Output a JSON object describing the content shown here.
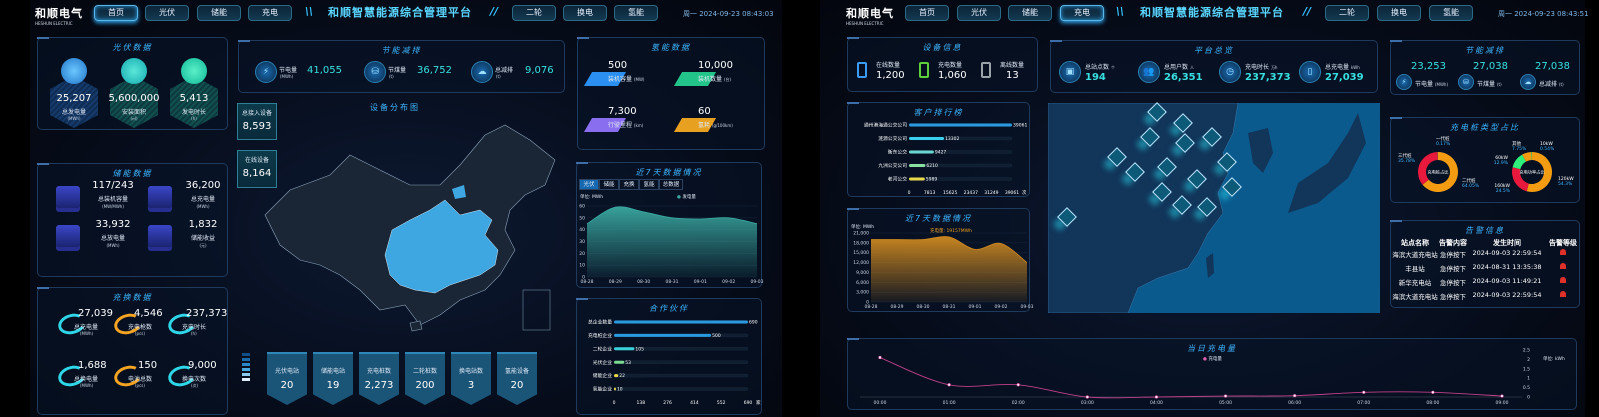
{
  "left": {
    "header": {
      "logo": "和顺电气",
      "logo_sub": "HESHUN ELECTRIC",
      "nav_left": [
        "首页",
        "光伏",
        "储能",
        "充电"
      ],
      "title": "和顺智慧能源综合管理平台",
      "nav_right": [
        "二轮",
        "换电",
        "氢能"
      ],
      "datetime": "周一 2024-09-23 08:43:03",
      "active_nav": "首页"
    },
    "pv": {
      "title": "光伏数据",
      "items": [
        {
          "value": "25,207",
          "label": "总发电量",
          "unit": "(MWh)"
        },
        {
          "value": "5,600,000",
          "label": "安装面积",
          "unit": "(㎡)"
        },
        {
          "value": "5,413",
          "label": "发电时长",
          "unit": "(h)"
        }
      ]
    },
    "storage": {
      "title": "储能数据",
      "items": [
        {
          "value": "117/243",
          "label": "总装机容量",
          "unit": "(MW/MWh)"
        },
        {
          "value": "36,200",
          "label": "总充电量",
          "unit": "(MWh)"
        },
        {
          "value": "33,932",
          "label": "总放电量",
          "unit": "(MWh)"
        },
        {
          "value": "1,832",
          "label": "储能收益",
          "unit": "(元)"
        }
      ]
    },
    "charge_swap": {
      "title": "充换数据",
      "items": [
        {
          "value": "27,039",
          "label": "总充电量",
          "unit": "(MWh)"
        },
        {
          "value": "4,546",
          "label": "充电枪数",
          "unit": "(pcs)"
        },
        {
          "value": "237,373",
          "label": "充电时长",
          "unit": "(h)"
        },
        {
          "value": "1,688",
          "label": "总换电量",
          "unit": "(MWh)"
        },
        {
          "value": "150",
          "label": "电池总数",
          "unit": "(pcs)"
        },
        {
          "value": "9,000",
          "label": "换电次数",
          "unit": "(次)"
        }
      ]
    },
    "saving": {
      "title": "节能减排",
      "items": [
        {
          "label": "节电量",
          "unit": "(MWh)",
          "value": "41,055"
        },
        {
          "label": "节煤量",
          "unit": "(t)",
          "value": "36,752"
        },
        {
          "label": "总减排",
          "unit": "(t)",
          "value": "9,076"
        }
      ]
    },
    "map": {
      "title": "设备分布图",
      "total_label": "总接入设备",
      "total_value": "8,593",
      "online_label": "在线设备",
      "online_value": "8,164",
      "stats": [
        {
          "label": "光伏电站",
          "value": "20"
        },
        {
          "label": "储能电站",
          "value": "19"
        },
        {
          "label": "充电桩数",
          "value": "2,273"
        },
        {
          "label": "二轮桩数",
          "value": "200"
        },
        {
          "label": "换电站数",
          "value": "3"
        },
        {
          "label": "氢能设备",
          "value": "20"
        }
      ],
      "legend_colors": [
        "#0f4e86",
        "#1a6aa8",
        "#2a88c8",
        "#45a8e0",
        "#8ccaf0",
        "#dfeefa"
      ],
      "highlight_color": "#3ea6e0"
    },
    "hydrogen": {
      "title": "氢能数据",
      "items": [
        {
          "value": "500",
          "label": "装机容量",
          "unit": "(MW)",
          "color": "#2a8ff0"
        },
        {
          "value": "10,000",
          "label": "装机数量",
          "unit": "(台)",
          "color": "#23c48a"
        },
        {
          "value": "7,300",
          "label": "行驶里程",
          "unit": "(km)",
          "color": "#8a6ef0"
        },
        {
          "value": "60",
          "label": "氢耗",
          "unit": "(g/100km)",
          "color": "#e8a020"
        }
      ]
    },
    "week": {
      "title": "近7天数据情况",
      "tabs": [
        "光伏",
        "储能",
        "充换",
        "氢能",
        "总数据"
      ],
      "active_tab": "光伏",
      "unit": "单位: MWh",
      "legend": "发电量"
    },
    "partners": {
      "title": "合作伙伴"
    }
  },
  "right": {
    "header": {
      "logo": "和顺电气",
      "logo_sub": "HESHUN ELECTRIC",
      "nav_left": [
        "首页",
        "光伏",
        "储能",
        "充电"
      ],
      "title": "和顺智慧能源综合管理平台",
      "nav_right": [
        "二轮",
        "换电",
        "氢能"
      ],
      "datetime": "周一 2024-09-23 08:43:51",
      "active_nav": "充电"
    },
    "device": {
      "title": "设备信息",
      "items": [
        {
          "label": "在线数量",
          "value": "1,200",
          "color": "#3a9cf0"
        },
        {
          "label": "充电数量",
          "value": "1,060",
          "color": "#5ccf3a"
        },
        {
          "label": "离线数量",
          "value": "13",
          "color": "#9aa2aa"
        }
      ]
    },
    "overview": {
      "title": "平台总览",
      "items": [
        {
          "label": "总站点数",
          "unit": "个",
          "value": "194"
        },
        {
          "label": "总用户数",
          "unit": "人",
          "value": "26,351"
        },
        {
          "label": "充电时长",
          "unit": "万h",
          "value": "237,373"
        },
        {
          "label": "总充电量",
          "unit": "kWh",
          "value": "27,039"
        }
      ]
    },
    "saving": {
      "title": "节能减排",
      "items": [
        {
          "value": "23,253",
          "label": "节电量",
          "unit": "(MWh)"
        },
        {
          "value": "27,038",
          "label": "节煤量",
          "unit": "(t)"
        },
        {
          "value": "27,038",
          "label": "总减排",
          "unit": "(t)"
        }
      ]
    },
    "ranking": {
      "title": "客户排行榜"
    },
    "week": {
      "title": "近7天数据情况",
      "unit": "单位: MWh",
      "tooltip": "充电量: 19157MWh"
    },
    "pile_types": {
      "title": "充电桩类型占比"
    },
    "alarms": {
      "title": "告警信息",
      "headers": [
        "站点名称",
        "告警内容",
        "发生时间",
        "告警等级"
      ],
      "rows": [
        [
          "海滨大道充电站",
          "急停按下",
          "2024-09-03 22:59:54"
        ],
        [
          "丰县站",
          "急停按下",
          "2024-08-31 13:35:38"
        ],
        [
          "新华充电站",
          "急停按下",
          "2024-09-03 11:49:21"
        ],
        [
          "海滨大道充电站",
          "急停按下",
          "2024-09-03 22:59:54"
        ]
      ],
      "level_color": "#e0302a"
    },
    "daily": {
      "title": "当日充电量",
      "legend": "充电量",
      "unit": "单位: kWh"
    }
  },
  "chart_data": [
    {
      "id": "left-week",
      "type": "area",
      "x": [
        "08-28",
        "08-29",
        "08-30",
        "08-31",
        "09-01",
        "09-02",
        "09-03"
      ],
      "series": [
        {
          "name": "发电量",
          "values": [
            45,
            59,
            55,
            50,
            49,
            50,
            45
          ]
        }
      ],
      "ylim": [
        0,
        60
      ],
      "yticks": [
        0,
        10,
        20,
        30,
        40,
        50,
        60
      ],
      "ylabel": "单位: MWh",
      "color": "#3aa8a0",
      "grid": true
    },
    {
      "id": "partners",
      "type": "bar",
      "orientation": "horizontal",
      "categories": [
        "总企业数量",
        "充电桩企业",
        "二轮企业",
        "光伏企业",
        "储能企业",
        "氢能企业"
      ],
      "values": [
        690,
        500,
        105,
        53,
        22,
        10
      ],
      "colors": [
        "#2a9ae0",
        "#2a9ae0",
        "#3ad0d8",
        "#7ad890",
        "#e8d84a",
        "#e8d84a"
      ],
      "xlim": [
        0,
        690
      ],
      "xticks": [
        0,
        138,
        276,
        414,
        552,
        690
      ],
      "xunit": "家"
    },
    {
      "id": "ranking",
      "type": "bar",
      "orientation": "horizontal",
      "categories": [
        "通州港海通公交公司",
        "涟源公交公司",
        "衡东公交",
        "九洲公交公司",
        "老河公交"
      ],
      "values": [
        39061,
        13302,
        9427,
        6210,
        5989
      ],
      "colors": [
        "#2a9ae0",
        "#3ad0f0",
        "#6ad8d0",
        "#8ae0a0",
        "#e8d84a"
      ],
      "xlim": [
        0,
        39061
      ],
      "xticks": [
        0,
        7813,
        15625,
        23437,
        31249,
        39061
      ],
      "xunit": "次"
    },
    {
      "id": "right-week",
      "type": "area",
      "x": [
        "08-28",
        "08-29",
        "08-30",
        "08-31",
        "09-01",
        "09-02",
        "09-03"
      ],
      "series": [
        {
          "name": "充电量",
          "values": [
            19000,
            19000,
            19000,
            19800,
            16000,
            17800,
            12000
          ]
        }
      ],
      "ylim": [
        0,
        21000
      ],
      "yticks": [
        0,
        3000,
        6000,
        9000,
        12000,
        15000,
        18000,
        21000
      ],
      "ylabel": "单位: MWh",
      "color": "#d08a20",
      "grid": true
    },
    {
      "id": "pie-gen",
      "type": "pie",
      "center_label": "充电桩占比",
      "slices": [
        {
          "name": "二代桩",
          "value": 64.05,
          "color": "#f39c12"
        },
        {
          "name": "三代桩",
          "value": 35.78,
          "color": "#e8193c"
        },
        {
          "name": "一代桩",
          "value": 0.17,
          "color": "#2ecc71"
        }
      ]
    },
    {
      "id": "pie-power",
      "type": "pie",
      "center_label": "充电功率占比",
      "slices": [
        {
          "name": "120kW",
          "value": 54.3,
          "color": "#f39c12"
        },
        {
          "name": "160kW",
          "value": 24.5,
          "color": "#e8193c"
        },
        {
          "name": "60kW",
          "value": 12.9,
          "color": "#2ef07a"
        },
        {
          "name": "其他",
          "value": 7.75,
          "color": "#f39c12"
        },
        {
          "name": "10kW",
          "value": 0.54,
          "color": "#2ecc71"
        }
      ]
    },
    {
      "id": "daily",
      "type": "line",
      "x": [
        "00:00",
        "01:00",
        "02:00",
        "03:00",
        "04:00",
        "05:00",
        "06:00",
        "07:00",
        "08:00",
        "09:00"
      ],
      "series": [
        {
          "name": "充电量",
          "values": [
            2.1,
            0.65,
            0.65,
            0,
            0,
            0.05,
            0.07,
            0.25,
            0.25,
            0.05
          ]
        }
      ],
      "ylim": [
        0,
        2.5
      ],
      "yticks": [
        0,
        0.5,
        1.0,
        1.5,
        2.0,
        2.5
      ],
      "ylabel": "单位: kWh",
      "color": "#c0408a"
    }
  ]
}
